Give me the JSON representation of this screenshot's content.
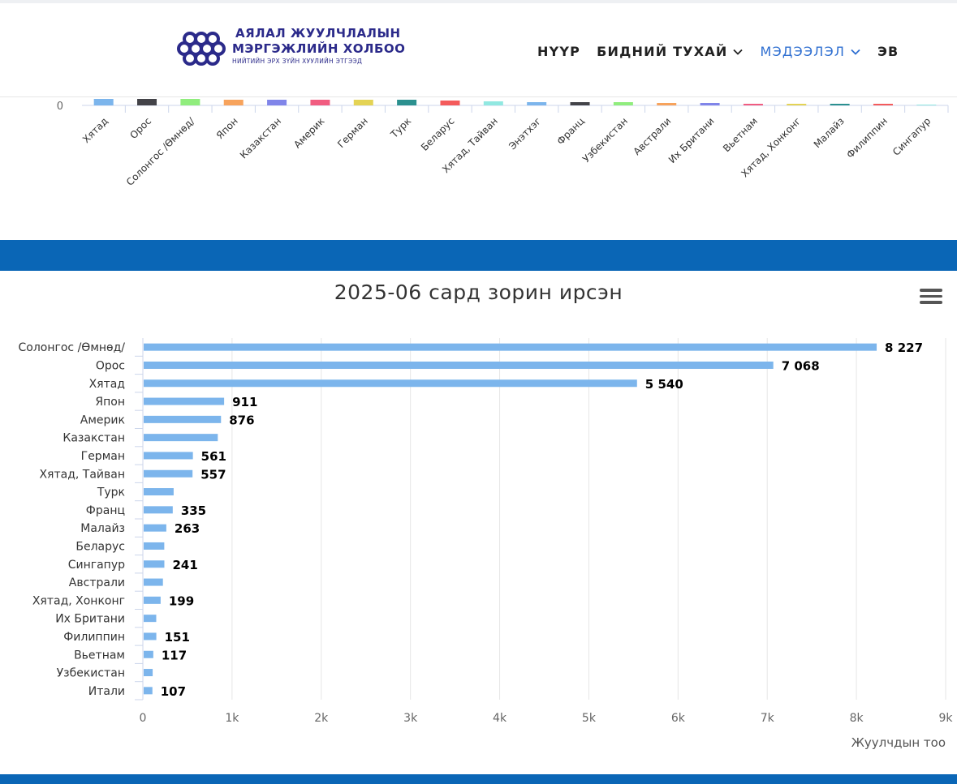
{
  "header": {
    "logo": {
      "line1": "АЯЛАЛ ЖУУЛЧЛАЛЫН",
      "line2": "МЭРГЭЖЛИЙН ХОЛБОО",
      "line3": "НИЙТИЙН ЭРХ ЗҮЙН ХУУЛИЙН ЭТГЭЭД"
    },
    "nav": [
      {
        "label": "НҮҮР",
        "dropdown": false,
        "active": false
      },
      {
        "label": "БИДНИЙ ТУХАЙ",
        "dropdown": true,
        "active": false
      },
      {
        "label": "МЭДЭЭЛЭЛ",
        "dropdown": true,
        "active": true
      },
      {
        "label": "ЭВ",
        "dropdown": false,
        "active": false
      }
    ]
  },
  "colors": {
    "band": "#0a66b6",
    "bar": "#7cb5ec",
    "brand": "#2b2a8a",
    "active_nav": "#2f6fd1"
  },
  "top_chart": {
    "y_tick": "0",
    "categories": [
      "Хятад",
      "Орос",
      "Солонгос /Өмнөд/",
      "Япон",
      "Казакстан",
      "Америк",
      "Герман",
      "Турк",
      "Беларус",
      "Хятад, Тайван",
      "Энэтхэг",
      "Франц",
      "Узбекистан",
      "Австрали",
      "Их Британи",
      "Вьетнам",
      "Хятад, Хонконг",
      "Малайз",
      "Филиппин",
      "Сингапур"
    ],
    "bar_colors": [
      "#7cb5ec",
      "#434348",
      "#90ed7d",
      "#f7a35c",
      "#8085e9",
      "#f15c80",
      "#e4d354",
      "#2b908f",
      "#f45b5b",
      "#91e8e1",
      "#7cb5ec",
      "#434348",
      "#90ed7d",
      "#f7a35c",
      "#8085e9",
      "#f15c80",
      "#e4d354",
      "#2b908f",
      "#f45b5b",
      "#91e8e1"
    ]
  },
  "chart_data": {
    "type": "bar",
    "orientation": "horizontal",
    "title": "2025-06 сард зорин ирсэн",
    "xlabel": "Жуулчдын тоо",
    "ylabel": "",
    "xlim": [
      0,
      9000
    ],
    "x_ticks": [
      "0",
      "1k",
      "2k",
      "3k",
      "4k",
      "5k",
      "6k",
      "7k",
      "8k",
      "9k"
    ],
    "grid": true,
    "categories": [
      "Солонгос /Өмнөд/",
      "Орос",
      "Хятад",
      "Япон",
      "Америк",
      "Казакстан",
      "Герман",
      "Хятад, Тайван",
      "Турк",
      "Франц",
      "Малайз",
      "Беларус",
      "Сингапур",
      "Австрали",
      "Хятад, Хонконг",
      "Их Британи",
      "Филиппин",
      "Вьетнам",
      "Узбекистан",
      "Итали"
    ],
    "values": [
      8227,
      7068,
      5540,
      911,
      876,
      840,
      561,
      557,
      345,
      335,
      263,
      240,
      241,
      225,
      199,
      150,
      151,
      117,
      110,
      107
    ],
    "data_labels": [
      "8 227",
      "7 068",
      "5 540",
      "911",
      "876",
      "",
      "561",
      "557",
      "",
      "335",
      "263",
      "",
      "241",
      "",
      "199",
      "",
      "151",
      "117",
      "",
      "107"
    ]
  }
}
